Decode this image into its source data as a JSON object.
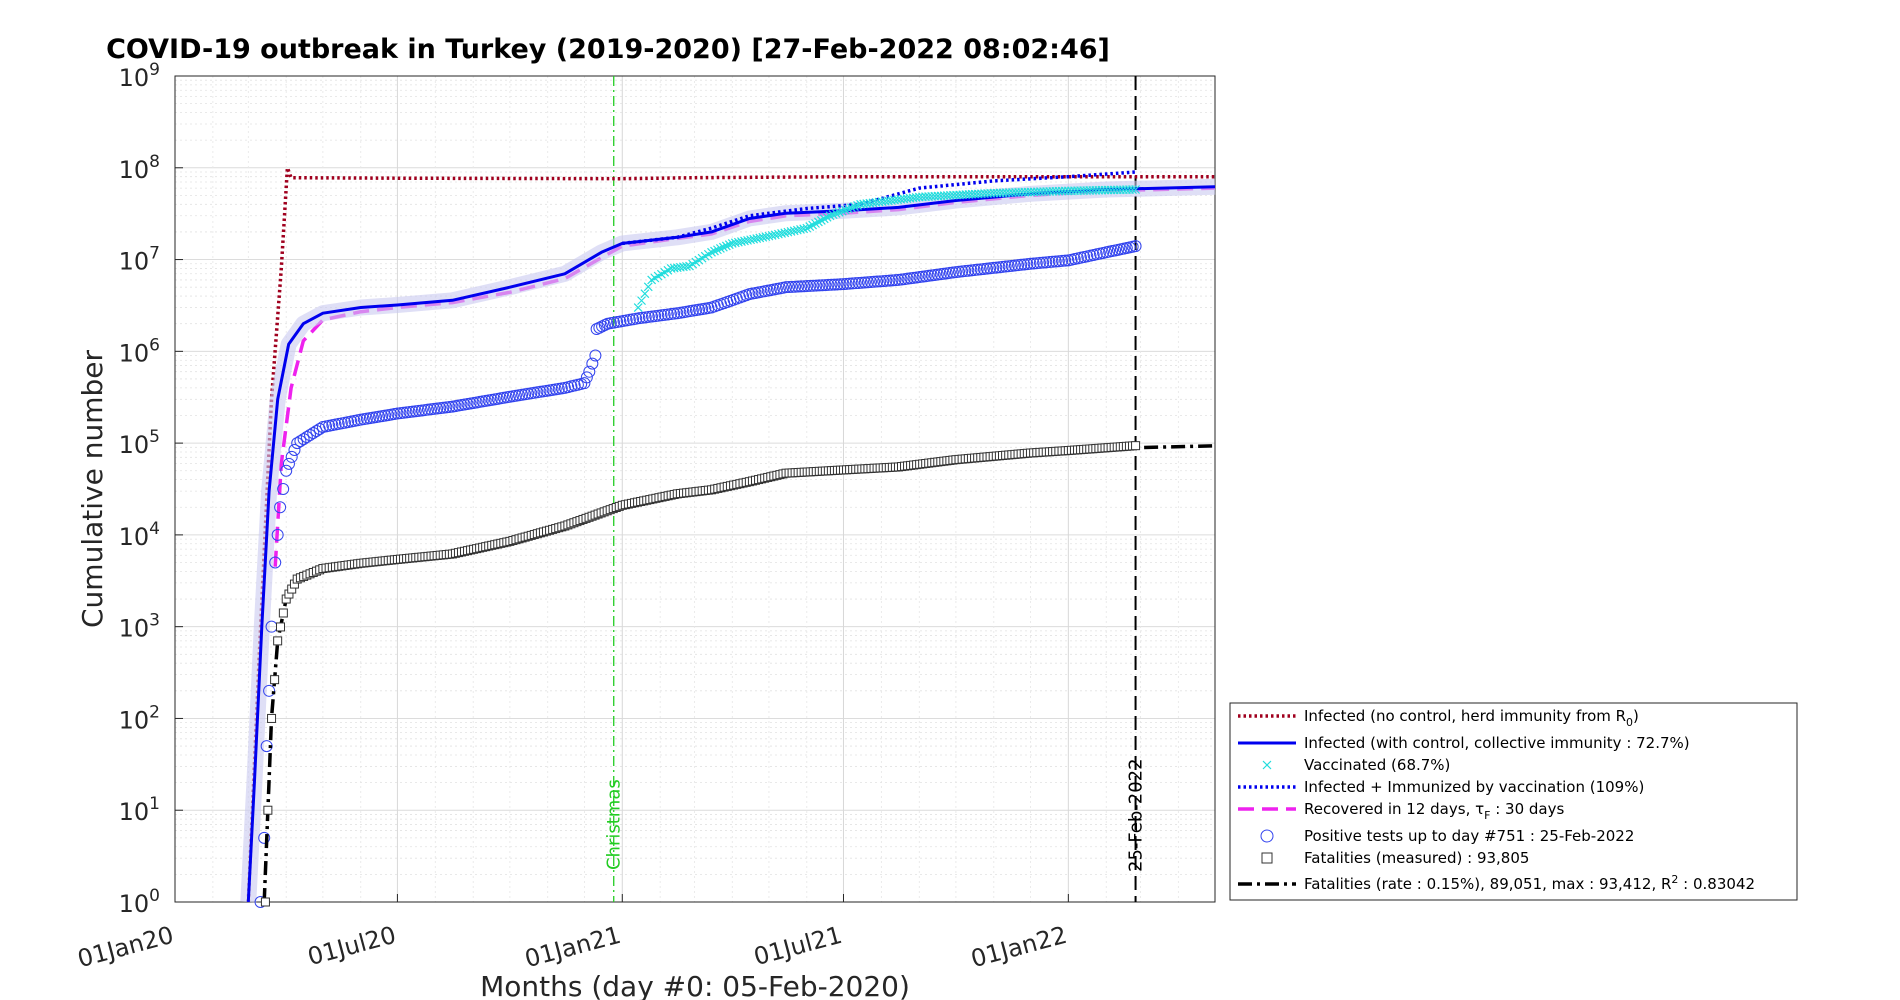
{
  "chart_data": {
    "type": "line",
    "title": "COVID-19 outbreak in Turkey (2019-2020) [27-Feb-2022 08:02:46]",
    "xlabel": "Months (day #0: 05-Feb-2020)",
    "ylabel": "Cumulative number",
    "yscale": "log",
    "xlim": [
      "2020-01-01",
      "2022-05-01"
    ],
    "ylim": [
      1,
      1000000000
    ],
    "grid": true,
    "legend_position": "bottom-right outside",
    "x_tick_labels": [
      "01Jan20",
      "01Jul20",
      "01Jan21",
      "01Jul21",
      "01Jan22"
    ],
    "x_tick_dates": [
      "2020-01-01",
      "2020-07-01",
      "2021-01-01",
      "2021-07-01",
      "2022-01-01"
    ],
    "y_ticks": [
      1,
      10,
      100,
      1000,
      10000,
      100000,
      1000000,
      10000000,
      100000000,
      1000000000
    ],
    "y_tick_exponents": [
      "0",
      "1",
      "2",
      "3",
      "4",
      "5",
      "6",
      "7",
      "8",
      "9"
    ],
    "annotations": [
      {
        "label": "Christmas",
        "date": "2020-12-25",
        "color": "#22cc22"
      },
      {
        "label": "25-Feb-2022",
        "date": "2022-02-25",
        "color": "#000000"
      }
    ],
    "series": [
      {
        "name": "Infected (no control, herd immunity from R0)",
        "color": "#a0001e",
        "style": "dotted",
        "points": [
          [
            "2020-03-01",
            1
          ],
          [
            "2020-03-10",
            500
          ],
          [
            "2020-03-20",
            300000
          ],
          [
            "2020-03-28",
            8000000
          ],
          [
            "2020-04-02",
            100000000
          ],
          [
            "2020-04-05",
            78000000
          ],
          [
            "2020-07-01",
            77000000
          ],
          [
            "2021-01-01",
            76000000
          ],
          [
            "2021-03-01",
            78000000
          ],
          [
            "2021-07-01",
            80000000
          ],
          [
            "2022-05-01",
            80000000
          ]
        ]
      },
      {
        "name": "Infected (with control, collective immunity : 72.7%)",
        "color": "#0000ee",
        "style": "solid",
        "points": [
          [
            "2020-03-01",
            1
          ],
          [
            "2020-03-06",
            20
          ],
          [
            "2020-03-12",
            1000
          ],
          [
            "2020-03-18",
            30000
          ],
          [
            "2020-03-25",
            300000
          ],
          [
            "2020-04-03",
            1200000
          ],
          [
            "2020-04-15",
            2000000
          ],
          [
            "2020-05-01",
            2600000
          ],
          [
            "2020-06-01",
            3000000
          ],
          [
            "2020-07-01",
            3200000
          ],
          [
            "2020-08-15",
            3600000
          ],
          [
            "2020-10-01",
            5000000
          ],
          [
            "2020-11-15",
            7000000
          ],
          [
            "2020-12-15",
            12000000
          ],
          [
            "2021-01-01",
            15000000
          ],
          [
            "2021-02-15",
            17500000
          ],
          [
            "2021-03-15",
            20000000
          ],
          [
            "2021-04-15",
            28000000
          ],
          [
            "2021-05-15",
            32000000
          ],
          [
            "2021-07-01",
            34000000
          ],
          [
            "2021-08-15",
            37000000
          ],
          [
            "2021-10-01",
            44000000
          ],
          [
            "2021-12-01",
            52000000
          ],
          [
            "2022-02-01",
            58000000
          ],
          [
            "2022-05-01",
            62000000
          ]
        ]
      },
      {
        "name": "Vaccinated (68.7%)",
        "color": "#22dddd",
        "style": "markers-x",
        "points": [
          [
            "2021-01-14",
            3000000
          ],
          [
            "2021-01-25",
            6000000
          ],
          [
            "2021-02-10",
            8000000
          ],
          [
            "2021-02-25",
            8500000
          ],
          [
            "2021-03-15",
            12000000
          ],
          [
            "2021-04-01",
            15000000
          ],
          [
            "2021-05-01",
            18000000
          ],
          [
            "2021-06-01",
            22000000
          ],
          [
            "2021-06-20",
            30000000
          ],
          [
            "2021-07-15",
            40000000
          ],
          [
            "2021-09-01",
            48000000
          ],
          [
            "2021-11-01",
            53000000
          ],
          [
            "2022-01-01",
            56000000
          ],
          [
            "2022-02-25",
            58000000
          ]
        ]
      },
      {
        "name": "Infected + Immunized by vaccination (109%)",
        "color": "#0000ee",
        "style": "dotted",
        "points": [
          [
            "2021-01-01",
            15000000
          ],
          [
            "2021-02-15",
            17500000
          ],
          [
            "2021-03-15",
            22000000
          ],
          [
            "2021-04-15",
            30000000
          ],
          [
            "2021-06-01",
            36000000
          ],
          [
            "2021-07-15",
            40000000
          ],
          [
            "2021-09-01",
            60000000
          ],
          [
            "2021-11-01",
            72000000
          ],
          [
            "2022-01-01",
            80000000
          ],
          [
            "2022-02-25",
            90000000
          ]
        ]
      },
      {
        "name": "Recovered in 12 days, τF : 30 days",
        "color": "#ee22ee",
        "style": "dashed",
        "points": [
          [
            "2020-03-23",
            4500
          ],
          [
            "2020-03-28",
            60000
          ],
          [
            "2020-04-05",
            400000
          ],
          [
            "2020-04-15",
            1300000
          ],
          [
            "2020-05-01",
            2200000
          ],
          [
            "2020-06-01",
            2700000
          ],
          [
            "2020-07-01",
            3000000
          ],
          [
            "2020-08-15",
            3400000
          ],
          [
            "2020-10-01",
            4400000
          ],
          [
            "2020-11-15",
            6200000
          ],
          [
            "2020-12-15",
            10500000
          ],
          [
            "2021-01-01",
            14000000
          ],
          [
            "2021-02-15",
            17000000
          ],
          [
            "2021-03-15",
            19000000
          ],
          [
            "2021-04-15",
            26000000
          ],
          [
            "2021-05-15",
            30000000
          ],
          [
            "2021-07-01",
            32000000
          ],
          [
            "2021-08-15",
            35000000
          ],
          [
            "2021-10-01",
            42000000
          ],
          [
            "2021-12-01",
            50000000
          ],
          [
            "2022-02-01",
            56000000
          ],
          [
            "2022-05-01",
            60000000
          ]
        ]
      },
      {
        "name": "Positive tests up to day #751 : 25-Feb-2022",
        "color": "#3344ee",
        "style": "markers-o",
        "points": [
          [
            "2020-03-11",
            1
          ],
          [
            "2020-03-14",
            5
          ],
          [
            "2020-03-16",
            50
          ],
          [
            "2020-03-18",
            200
          ],
          [
            "2020-03-20",
            1000
          ],
          [
            "2020-03-23",
            5000
          ],
          [
            "2020-03-27",
            20000
          ],
          [
            "2020-04-01",
            50000
          ],
          [
            "2020-04-10",
            100000
          ],
          [
            "2020-05-01",
            150000
          ],
          [
            "2020-06-01",
            180000
          ],
          [
            "2020-07-01",
            210000
          ],
          [
            "2020-08-15",
            250000
          ],
          [
            "2020-10-01",
            320000
          ],
          [
            "2020-11-15",
            400000
          ],
          [
            "2020-12-01",
            450000
          ],
          [
            "2020-12-05",
            600000
          ],
          [
            "2020-12-10",
            900000
          ],
          [
            "2020-12-11",
            1750000
          ],
          [
            "2020-12-20",
            2000000
          ],
          [
            "2021-01-15",
            2300000
          ],
          [
            "2021-02-15",
            2600000
          ],
          [
            "2021-03-15",
            3000000
          ],
          [
            "2021-04-15",
            4200000
          ],
          [
            "2021-05-15",
            5000000
          ],
          [
            "2021-07-01",
            5400000
          ],
          [
            "2021-08-15",
            6000000
          ],
          [
            "2021-10-01",
            7300000
          ],
          [
            "2021-12-01",
            9000000
          ],
          [
            "2022-01-01",
            9800000
          ],
          [
            "2022-02-01",
            12000000
          ],
          [
            "2022-02-25",
            14000000
          ]
        ]
      },
      {
        "name": "Fatalities (measured) : 93,805",
        "color": "#333333",
        "style": "markers-s",
        "points": [
          [
            "2020-03-15",
            1
          ],
          [
            "2020-03-17",
            10
          ],
          [
            "2020-03-20",
            100
          ],
          [
            "2020-03-25",
            700
          ],
          [
            "2020-04-01",
            2000
          ],
          [
            "2020-04-10",
            3300
          ],
          [
            "2020-05-01",
            4300
          ],
          [
            "2020-06-01",
            4900
          ],
          [
            "2020-07-01",
            5400
          ],
          [
            "2020-08-15",
            6200
          ],
          [
            "2020-10-01",
            8500
          ],
          [
            "2020-11-15",
            12500
          ],
          [
            "2021-01-01",
            21000
          ],
          [
            "2021-02-15",
            28000
          ],
          [
            "2021-03-15",
            31000
          ],
          [
            "2021-04-15",
            38000
          ],
          [
            "2021-05-15",
            47000
          ],
          [
            "2021-07-01",
            51000
          ],
          [
            "2021-08-15",
            55000
          ],
          [
            "2021-10-01",
            66000
          ],
          [
            "2021-12-01",
            78000
          ],
          [
            "2022-01-01",
            83000
          ],
          [
            "2022-02-25",
            93805
          ]
        ]
      },
      {
        "name": "Fatalities (rate : 0.15%), 89,051, max : 93,412, R2 : 0.83042",
        "color": "#000000",
        "style": "dashdot",
        "points": [
          [
            "2020-03-14",
            1
          ],
          [
            "2020-03-17",
            10
          ],
          [
            "2020-03-20",
            100
          ],
          [
            "2020-03-25",
            700
          ],
          [
            "2020-04-01",
            2000
          ],
          [
            "2020-04-10",
            3300
          ],
          [
            "2020-05-01",
            4300
          ],
          [
            "2020-06-01",
            4900
          ],
          [
            "2020-07-01",
            5400
          ],
          [
            "2020-08-15",
            6200
          ],
          [
            "2020-10-01",
            8400
          ],
          [
            "2020-11-15",
            12300
          ],
          [
            "2021-01-01",
            20500
          ],
          [
            "2021-02-15",
            27500
          ],
          [
            "2021-03-15",
            30500
          ],
          [
            "2021-04-15",
            37500
          ],
          [
            "2021-05-15",
            46000
          ],
          [
            "2021-07-01",
            50500
          ],
          [
            "2021-08-15",
            54500
          ],
          [
            "2021-10-01",
            65000
          ],
          [
            "2021-12-01",
            77000
          ],
          [
            "2022-01-01",
            82000
          ],
          [
            "2022-02-25",
            89051
          ],
          [
            "2022-05-01",
            93412
          ]
        ]
      }
    ]
  },
  "legend": {
    "items": [
      {
        "prefix": "Infected (no control, herd immunity from R",
        "sub": "0",
        "suffix": ")"
      },
      {
        "prefix": "Infected (with control, collective immunity : 72.7%)",
        "sub": "",
        "suffix": ""
      },
      {
        "prefix": "Vaccinated (68.7%)",
        "sub": "",
        "suffix": ""
      },
      {
        "prefix": "Infected + Immunized by vaccination (109%)",
        "sub": "",
        "suffix": ""
      },
      {
        "prefix": "Recovered in 12 days, τ",
        "sub": "F",
        "suffix": " : 30 days"
      },
      {
        "prefix": "Positive tests up to day #751 : 25-Feb-2022",
        "sub": "",
        "suffix": ""
      },
      {
        "prefix": "Fatalities (measured) : 93,805",
        "sub": "",
        "suffix": ""
      },
      {
        "prefix": "Fatalities (rate : 0.15%), 89,051, max : 93,412, R",
        "sup": "2",
        "suffix": " : 0.83042"
      }
    ]
  }
}
